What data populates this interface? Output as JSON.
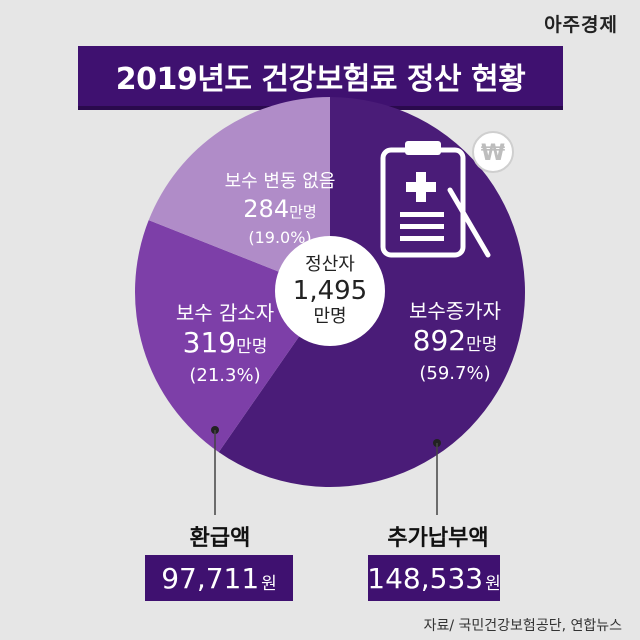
{
  "brand": "아주경제",
  "title": "2019년도 건강보험료 정산 현황",
  "center": {
    "label": "정산자",
    "value": "1,495",
    "unit": "만명"
  },
  "slices": [
    {
      "key": "increase",
      "name": "보수증가자",
      "value_text": "892",
      "unit": "만명",
      "pct_text": "(59.7%)"
    },
    {
      "key": "decrease",
      "name": "보수 감소자",
      "value_text": "319",
      "unit": "만명",
      "pct_text": "(21.3%)"
    },
    {
      "key": "nochange",
      "name": "보수 변동 없음",
      "value_text": "284",
      "unit": "만명",
      "pct_text": "(19.0%)"
    }
  ],
  "refund": {
    "title": "환급액",
    "amount": "97,711",
    "unit": "원"
  },
  "extra": {
    "title": "추가납부액",
    "amount": "148,533",
    "unit": "원"
  },
  "source": "자료/ 국민건강보험공단, 연합뉴스",
  "colors": {
    "increase": "#4a1c78",
    "decrease": "#7d3fa8",
    "nochange": "#b08cc8",
    "banner": "#3f1170",
    "background": "#e6e6e6"
  },
  "chart_data": {
    "type": "pie",
    "title": "2019년도 건강보험료 정산 현황",
    "categories": [
      "보수증가자",
      "보수 감소자",
      "보수 변동 없음"
    ],
    "values": [
      892,
      319,
      284
    ],
    "percentages": [
      59.7,
      21.3,
      19.0
    ],
    "unit": "만명",
    "total": 1495
  }
}
